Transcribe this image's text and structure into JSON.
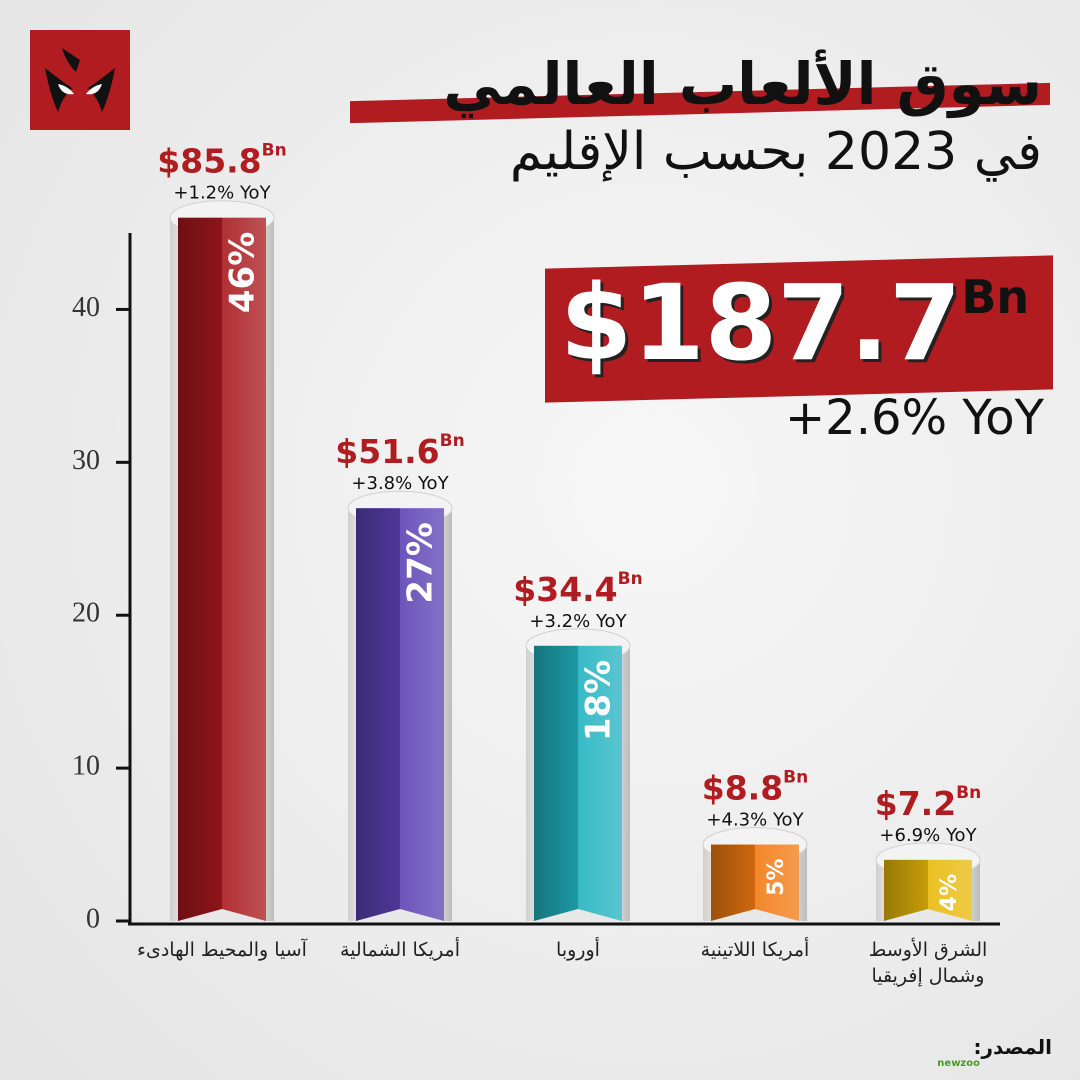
{
  "chart_data": {
    "type": "bar",
    "title": "سوق الألعاب العالمي",
    "subtitle": "في 2023 بحسب الإقليم",
    "total": "$187.7",
    "total_unit": "Bn",
    "total_change": "+2.6% YoY",
    "categories": [
      "آسيا والمحيط الهادىء",
      "أمريكا الشمالية",
      "أوروبا",
      "أمريكا اللاتينية",
      "الشرق الأوسط وشمال إفريقيا"
    ],
    "values": [
      46,
      27,
      18,
      5,
      4
    ],
    "value_labels": [
      "46%",
      "27%",
      "18%",
      "5%",
      "4%"
    ],
    "colors": [
      "#a8181d",
      "#5b42b3",
      "#22b3c0",
      "#f27a12",
      "#e9b90a"
    ],
    "revenue_labels": [
      "$85.8",
      "$51.6",
      "$34.4",
      "$8.8",
      "$7.2"
    ],
    "revenue_unit": "Bn",
    "growth_labels": [
      "+1.2% YoY",
      "+3.8% YoY",
      "+3.2% YoY",
      "+4.3% YoY",
      "+6.9% YoY"
    ],
    "ylim": [
      0,
      45
    ],
    "yticks": [
      0,
      10,
      20,
      30,
      40
    ],
    "source_label": "المصدر:",
    "source": "newzoo"
  }
}
